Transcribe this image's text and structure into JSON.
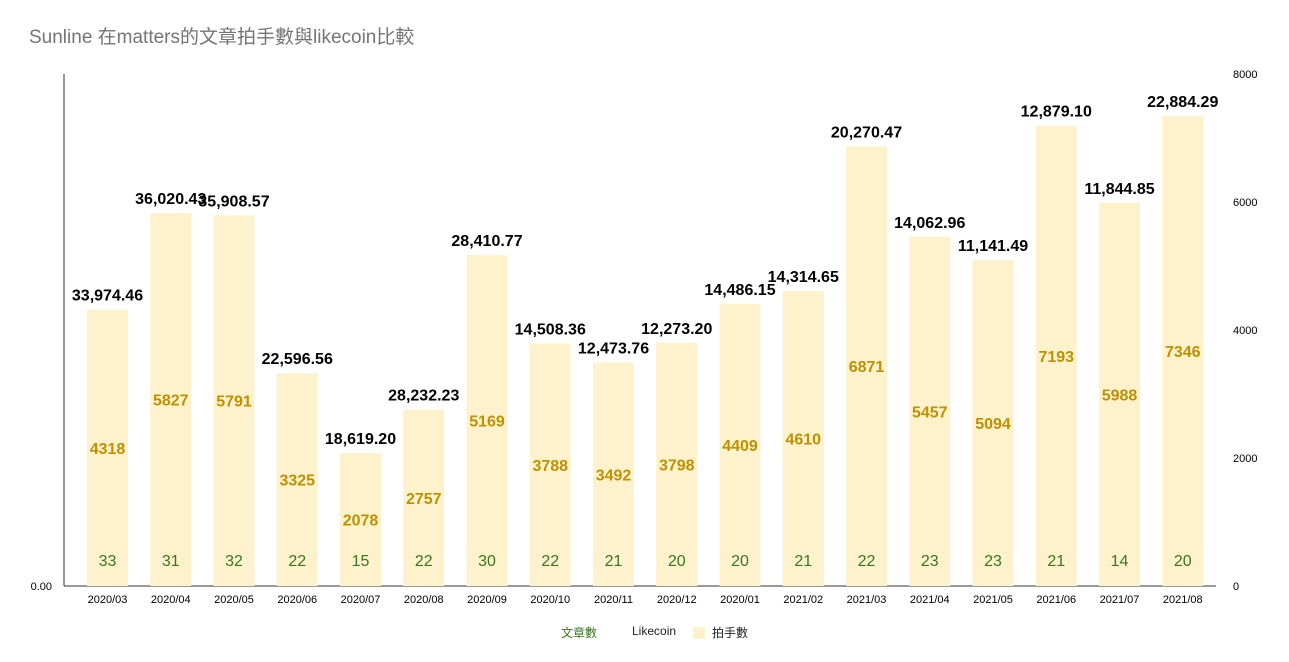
{
  "title": "Sunline 在matters的文章拍手數與likecoin比較",
  "colors": {
    "bar": "#fdf2cc",
    "bar_label": "#bf9000",
    "article_label": "#38761d",
    "likecoin_label": "#000000",
    "axis_text": "#000000"
  },
  "chart_data": {
    "type": "bar",
    "categories": [
      "2020/03",
      "2020/04",
      "2020/05",
      "2020/06",
      "2020/07",
      "2020/08",
      "2020/09",
      "2020/10",
      "2020/11",
      "2020/12",
      "2020/01",
      "2021/02",
      "2021/03",
      "2021/04",
      "2021/05",
      "2021/06",
      "2021/07",
      "2021/08"
    ],
    "series": [
      {
        "name": "拍手數",
        "axis": "right",
        "style": "bar",
        "values": [
          4318,
          5827,
          5791,
          3325,
          2078,
          2757,
          5169,
          3788,
          3492,
          3798,
          4409,
          4610,
          6871,
          5457,
          5094,
          7193,
          5988,
          7346
        ]
      },
      {
        "name": "Likecoin",
        "axis": "left",
        "style": "label",
        "values": [
          33974.46,
          36020.43,
          35908.57,
          22596.56,
          18619.2,
          28232.23,
          28410.77,
          14508.36,
          12473.76,
          12273.2,
          14486.15,
          14314.65,
          20270.47,
          14062.96,
          11141.49,
          12879.1,
          11844.85,
          22884.29
        ],
        "labels": [
          "33,974.46",
          "36,020.43",
          "35,908.57",
          "22,596.56",
          "18,619.20",
          "28,232.23",
          "28,410.77",
          "14,508.36",
          "12,473.76",
          "12,273.20",
          "14,486.15",
          "14,314.65",
          "20,270.47",
          "14,062.96",
          "11,141.49",
          "12,879.10",
          "11,844.85",
          "22,884.29"
        ]
      },
      {
        "name": "文章數",
        "axis": "left",
        "style": "label",
        "values": [
          33,
          31,
          32,
          22,
          15,
          22,
          30,
          22,
          21,
          20,
          20,
          21,
          22,
          23,
          23,
          21,
          14,
          20
        ]
      }
    ],
    "left_axis": {
      "tick_labels": [
        "0.00"
      ]
    },
    "right_axis": {
      "range": [
        0,
        8000
      ],
      "ticks": [
        0,
        2000,
        4000,
        6000,
        8000
      ]
    },
    "legend": {
      "position": "bottom",
      "entries": [
        "文章數",
        "Likecoin",
        "拍手數"
      ]
    }
  }
}
